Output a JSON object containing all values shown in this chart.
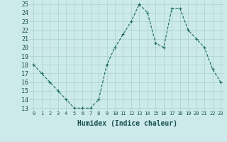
{
  "x": [
    0,
    1,
    2,
    3,
    4,
    5,
    6,
    7,
    8,
    9,
    10,
    11,
    12,
    13,
    14,
    15,
    16,
    17,
    18,
    19,
    20,
    21,
    22,
    23
  ],
  "y": [
    18,
    17,
    16,
    15,
    14,
    13,
    13,
    13,
    14,
    18,
    20,
    21.5,
    23,
    25,
    24,
    20.5,
    20,
    24.5,
    24.5,
    22,
    21,
    20,
    17.5,
    16
  ],
  "line_color": "#1a6b5a",
  "marker": "+",
  "marker_size": 3,
  "background_color": "#cceaea",
  "grid_color": "#aacfcf",
  "xlabel": "Humidex (Indice chaleur)",
  "ymin": 13,
  "ymax": 25,
  "xmin": -0.5,
  "xmax": 23.5,
  "yticks": [
    13,
    14,
    15,
    16,
    17,
    18,
    19,
    20,
    21,
    22,
    23,
    24,
    25
  ],
  "xtick_labels": [
    "0",
    "1",
    "2",
    "3",
    "4",
    "5",
    "6",
    "7",
    "8",
    "9",
    "10",
    "11",
    "12",
    "13",
    "14",
    "15",
    "16",
    "17",
    "18",
    "19",
    "20",
    "21",
    "22",
    "23"
  ],
  "xlabel_fontsize": 7,
  "ytick_fontsize": 6,
  "xtick_fontsize": 5
}
